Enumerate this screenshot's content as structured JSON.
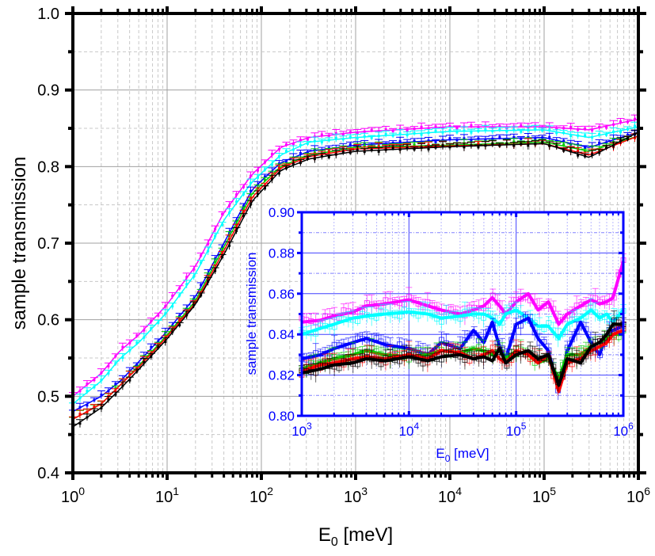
{
  "chart_data": [
    {
      "name": "main",
      "type": "line",
      "title": "",
      "xlabel": "E0 [meV]",
      "xlabel_main": "E",
      "xlabel_sub": "0",
      "xlabel_unit": " [meV]",
      "ylabel": "sample transmission",
      "xscale": "log",
      "xlim": [
        1,
        1000000
      ],
      "ylim": [
        0.4,
        1.0
      ],
      "grid": true,
      "x_tick_labels": [
        {
          "base": "10",
          "exp": "0",
          "value": 1
        },
        {
          "base": "10",
          "exp": "1",
          "value": 10
        },
        {
          "base": "10",
          "exp": "2",
          "value": 100
        },
        {
          "base": "10",
          "exp": "3",
          "value": 1000
        },
        {
          "base": "10",
          "exp": "4",
          "value": 10000
        },
        {
          "base": "10",
          "exp": "5",
          "value": 100000
        },
        {
          "base": "10",
          "exp": "6",
          "value": 1000000
        }
      ],
      "y_tick_labels": [
        "0.4",
        "0.5",
        "0.6",
        "0.7",
        "0.8",
        "0.9",
        "1.0"
      ],
      "y_ticks": [
        0.4,
        0.5,
        0.6,
        0.7,
        0.8,
        0.9,
        1.0
      ],
      "x": [
        1,
        2,
        3.2,
        5,
        10,
        20,
        40,
        80,
        160,
        320,
        1000,
        10000,
        100000,
        300000,
        1000000
      ],
      "series": [
        {
          "name": "magenta",
          "color": "#ff00ff",
          "values": [
            0.5,
            0.53,
            0.56,
            0.58,
            0.62,
            0.67,
            0.74,
            0.79,
            0.825,
            0.838,
            0.845,
            0.852,
            0.852,
            0.848,
            0.862
          ]
        },
        {
          "name": "cyan",
          "color": "#00ffff",
          "values": [
            0.49,
            0.52,
            0.55,
            0.57,
            0.61,
            0.66,
            0.73,
            0.78,
            0.815,
            0.832,
            0.838,
            0.846,
            0.848,
            0.838,
            0.852
          ]
        },
        {
          "name": "blue",
          "color": "#0000ff",
          "values": [
            0.48,
            0.5,
            0.52,
            0.545,
            0.585,
            0.63,
            0.7,
            0.77,
            0.805,
            0.82,
            0.828,
            0.835,
            0.838,
            0.825,
            0.845
          ]
        },
        {
          "name": "green",
          "color": "#00cc00",
          "values": [
            0.47,
            0.49,
            0.515,
            0.54,
            0.58,
            0.625,
            0.695,
            0.765,
            0.8,
            0.815,
            0.825,
            0.828,
            0.832,
            0.82,
            0.84
          ]
        },
        {
          "name": "red",
          "color": "#ff0000",
          "values": [
            0.47,
            0.49,
            0.515,
            0.538,
            0.578,
            0.622,
            0.69,
            0.76,
            0.798,
            0.813,
            0.823,
            0.827,
            0.83,
            0.815,
            0.84
          ]
        },
        {
          "name": "black",
          "color": "#000000",
          "values": [
            0.46,
            0.485,
            0.51,
            0.535,
            0.575,
            0.62,
            0.685,
            0.755,
            0.795,
            0.81,
            0.82,
            0.826,
            0.83,
            0.812,
            0.845
          ]
        }
      ]
    },
    {
      "name": "inset",
      "type": "line",
      "title": "",
      "xlabel": "E0 [meV]",
      "xlabel_main": "E",
      "xlabel_sub": "0",
      "xlabel_unit": " [meV]",
      "ylabel": "sample transmission",
      "xscale": "log",
      "xlim": [
        1000,
        1000000
      ],
      "ylim": [
        0.8,
        0.9
      ],
      "grid": true,
      "x_tick_labels": [
        {
          "base": "10",
          "exp": "3",
          "value": 1000
        },
        {
          "base": "10",
          "exp": "4",
          "value": 10000
        },
        {
          "base": "10",
          "exp": "5",
          "value": 100000
        },
        {
          "base": "10",
          "exp": "6",
          "value": 1000000
        }
      ],
      "y_tick_labels": [
        "0.80",
        "0.82",
        "0.84",
        "0.86",
        "0.88",
        "0.90"
      ],
      "y_ticks": [
        0.8,
        0.82,
        0.84,
        0.86,
        0.88,
        0.9
      ],
      "x": [
        1000,
        1500,
        2000,
        3000,
        4000,
        6000,
        10000,
        15000,
        20000,
        30000,
        40000,
        50000,
        60000,
        70000,
        80000,
        100000,
        130000,
        160000,
        200000,
        250000,
        300000,
        400000,
        500000,
        600000,
        700000,
        800000,
        1000000
      ],
      "series": [
        {
          "name": "magenta",
          "color": "#ff00ff",
          "values": [
            0.846,
            0.847,
            0.849,
            0.851,
            0.854,
            0.855,
            0.857,
            0.854,
            0.852,
            0.85,
            0.852,
            0.854,
            0.858,
            0.854,
            0.85,
            0.856,
            0.86,
            0.852,
            0.856,
            0.845,
            0.85,
            0.854,
            0.857,
            0.855,
            0.856,
            0.858,
            0.876
          ]
        },
        {
          "name": "cyan",
          "color": "#00ffff",
          "values": [
            0.84,
            0.843,
            0.845,
            0.848,
            0.849,
            0.85,
            0.851,
            0.85,
            0.848,
            0.849,
            0.85,
            0.85,
            0.848,
            0.845,
            0.85,
            0.852,
            0.848,
            0.844,
            0.844,
            0.838,
            0.845,
            0.848,
            0.852,
            0.848,
            0.85,
            0.846,
            0.852
          ]
        },
        {
          "name": "blue",
          "color": "#0000ff",
          "values": [
            0.828,
            0.83,
            0.833,
            0.836,
            0.838,
            0.835,
            0.833,
            0.83,
            0.836,
            0.833,
            0.842,
            0.836,
            0.846,
            0.834,
            0.828,
            0.845,
            0.848,
            0.838,
            0.832,
            0.812,
            0.832,
            0.846,
            0.836,
            0.83,
            0.84,
            0.842,
            0.844
          ]
        },
        {
          "name": "green",
          "color": "#00cc00",
          "values": [
            0.823,
            0.826,
            0.828,
            0.83,
            0.832,
            0.83,
            0.829,
            0.83,
            0.832,
            0.831,
            0.833,
            0.832,
            0.83,
            0.832,
            0.828,
            0.832,
            0.83,
            0.826,
            0.828,
            0.818,
            0.83,
            0.83,
            0.834,
            0.836,
            0.838,
            0.84,
            0.84
          ]
        },
        {
          "name": "red",
          "color": "#ff0000",
          "values": [
            0.822,
            0.825,
            0.826,
            0.828,
            0.829,
            0.828,
            0.83,
            0.828,
            0.832,
            0.831,
            0.828,
            0.83,
            0.832,
            0.828,
            0.826,
            0.832,
            0.83,
            0.826,
            0.83,
            0.812,
            0.826,
            0.828,
            0.832,
            0.834,
            0.836,
            0.84,
            0.842
          ]
        },
        {
          "name": "black",
          "color": "#000000",
          "values": [
            0.821,
            0.823,
            0.825,
            0.826,
            0.828,
            0.827,
            0.829,
            0.827,
            0.829,
            0.83,
            0.828,
            0.829,
            0.827,
            0.833,
            0.826,
            0.83,
            0.832,
            0.828,
            0.83,
            0.815,
            0.828,
            0.826,
            0.834,
            0.836,
            0.84,
            0.845,
            0.845
          ]
        }
      ]
    }
  ]
}
